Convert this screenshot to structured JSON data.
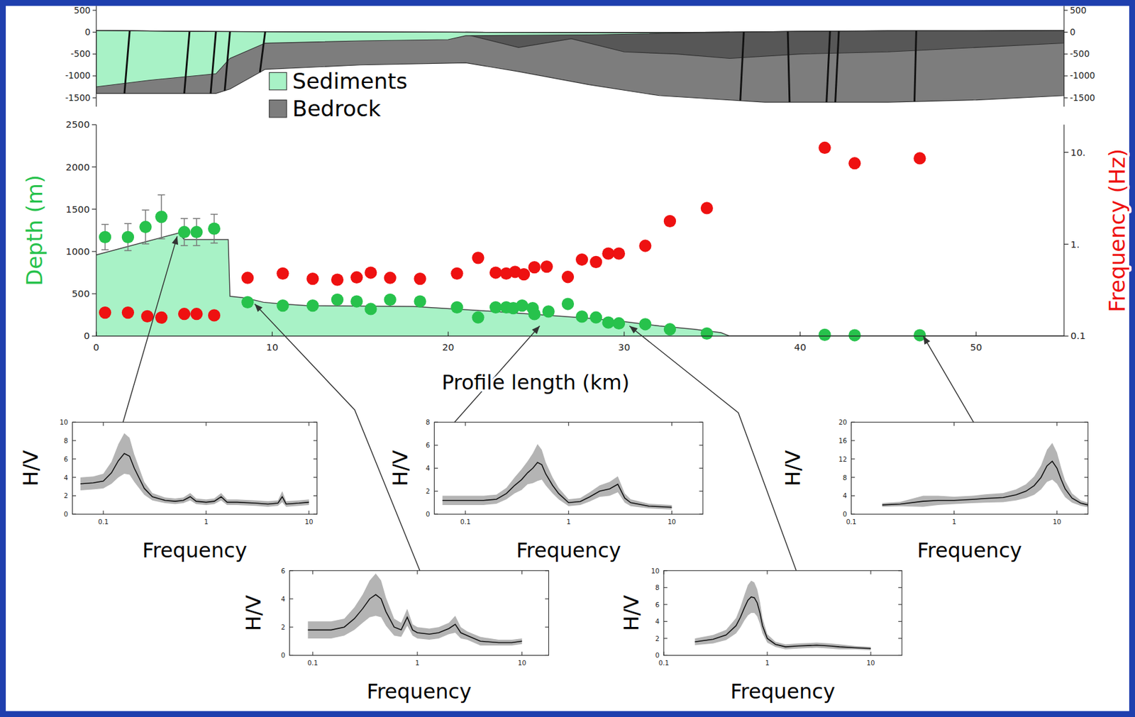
{
  "chart_data": [
    {
      "type": "cross_section",
      "xlim": [
        0,
        55
      ],
      "ylim": [
        -1700,
        600
      ],
      "yticks": [
        500,
        0,
        -500,
        -1000,
        -1500
      ],
      "tick_labels": "y",
      "surface": {
        "x": [
          0,
          5,
          10,
          20,
          30,
          36,
          40,
          45,
          50,
          55
        ],
        "values": [
          40,
          20,
          10,
          0,
          -10,
          0,
          20,
          30,
          30,
          40
        ]
      },
      "sediment_base": {
        "x": [
          0,
          3,
          6.8,
          7.6,
          9.6,
          15,
          20,
          21,
          28,
          36
        ],
        "values": [
          -1250,
          -1100,
          -950,
          -600,
          -250,
          -200,
          -170,
          -80,
          -60,
          0
        ]
      },
      "bedrock_base": {
        "x": [
          0,
          6.8,
          7.6,
          9.6,
          15,
          21,
          24,
          28,
          32,
          38,
          45,
          50,
          55
        ],
        "values": [
          -1400,
          -1400,
          -1300,
          -850,
          -750,
          -700,
          -900,
          -1200,
          -1450,
          -1600,
          -1600,
          -1550,
          -1450
        ]
      },
      "upper_unit_base": {
        "x": [
          21,
          24,
          27,
          30,
          33,
          36,
          40,
          45,
          50,
          55
        ],
        "values": [
          -50,
          -350,
          -150,
          -450,
          -500,
          -600,
          -500,
          -450,
          -350,
          -250
        ]
      },
      "faults": [
        [
          1.9,
          1.6
        ],
        [
          5.3,
          5.0
        ],
        [
          6.8,
          6.5
        ],
        [
          7.6,
          7.3
        ],
        [
          9.6,
          9.3
        ],
        [
          36.8,
          36.6
        ],
        [
          39.3,
          39.4
        ],
        [
          41.7,
          41.5
        ],
        [
          42.2,
          42.0
        ],
        [
          46.6,
          46.5
        ]
      ],
      "series": [
        {
          "name": "Sediments",
          "color": "#a8f2c6"
        },
        {
          "name": "Bedrock",
          "color": "#7d7d7d"
        }
      ],
      "legend": "bottom-left"
    },
    {
      "type": "scatter",
      "xlabel": "Profile length (km)",
      "ylabel": "Depth (m)",
      "y2label": "Frequency (Hz)",
      "xlim": [
        0,
        55
      ],
      "xticks": [
        0,
        10,
        20,
        30,
        40,
        50
      ],
      "ylim": [
        0,
        2500
      ],
      "yticks": [
        0,
        500,
        1000,
        1500,
        2000,
        2500
      ],
      "y2lim": [
        0.1,
        20
      ],
      "y2ticks": [
        {
          "value": 0.1,
          "label": "0.1"
        },
        {
          "value": 1,
          "label": "1."
        },
        {
          "value": 10,
          "label": "10."
        }
      ],
      "log": "y2",
      "series": [
        {
          "type": "area",
          "color": "#a8f2c6",
          "x": [
            0,
            4.7,
            5.0,
            7.5,
            7.6,
            8.5,
            9.5,
            10.5,
            12,
            18,
            22,
            26,
            28,
            30,
            32,
            34,
            35.5,
            36,
            55
          ],
          "values": [
            960,
            1220,
            1140,
            1140,
            470,
            450,
            400,
            380,
            360,
            350,
            300,
            240,
            210,
            170,
            120,
            80,
            40,
            0,
            0
          ]
        },
        {
          "type": "scatter",
          "color": "#27c24c",
          "x": [
            0.5,
            1.8,
            2.8,
            3.7,
            5.0,
            5.7,
            6.7,
            8.6,
            10.6,
            12.3,
            13.7,
            14.8,
            15.6,
            16.7,
            18.4,
            20.5,
            21.7,
            22.7,
            23.3,
            23.7,
            24.2,
            24.8,
            24.9,
            25.7,
            26.8,
            27.6,
            28.4,
            29.1,
            29.7,
            31.2,
            32.6,
            34.7,
            41.4,
            43.1,
            46.8
          ],
          "values": [
            1170,
            1170,
            1290,
            1410,
            1230,
            1230,
            1270,
            400,
            360,
            360,
            430,
            410,
            320,
            430,
            410,
            340,
            220,
            340,
            340,
            330,
            360,
            330,
            260,
            290,
            380,
            230,
            220,
            160,
            150,
            140,
            80,
            30,
            15,
            10,
            10
          ],
          "errors": [
            150,
            160,
            200,
            260,
            160,
            160,
            170,
            null,
            null,
            null,
            null,
            null,
            null,
            null,
            null,
            null,
            null,
            null,
            null,
            null,
            null,
            null,
            null,
            null,
            null,
            null,
            null,
            null,
            null,
            null,
            null,
            null,
            null,
            null,
            null
          ]
        },
        {
          "type": "scatter",
          "axis": "y2",
          "color": "#ee1111",
          "x": [
            0.5,
            1.8,
            2.9,
            3.7,
            5.0,
            5.7,
            6.7,
            8.6,
            10.6,
            12.3,
            13.7,
            14.8,
            15.6,
            16.7,
            18.4,
            20.5,
            21.7,
            22.7,
            23.3,
            23.8,
            24.3,
            24.9,
            25.6,
            26.8,
            27.6,
            28.4,
            29.1,
            29.7,
            31.2,
            32.6,
            34.7,
            41.4,
            43.1,
            46.8
          ],
          "values": [
            0.18,
            0.18,
            0.164,
            0.159,
            0.174,
            0.174,
            0.168,
            0.43,
            0.48,
            0.42,
            0.41,
            0.435,
            0.49,
            0.43,
            0.42,
            0.48,
            0.71,
            0.49,
            0.48,
            0.5,
            0.47,
            0.56,
            0.57,
            0.44,
            0.68,
            0.64,
            0.79,
            0.79,
            0.96,
            1.78,
            2.47,
            11.2,
            7.6,
            8.6
          ]
        }
      ]
    },
    {
      "type": "line",
      "xlabel": "Frequency",
      "ylabel": "H/V",
      "log": "x",
      "xlim": [
        0.05,
        12
      ],
      "xticks": [
        0.1,
        1,
        10
      ],
      "ylim": [
        0,
        10
      ],
      "yticks": [
        0,
        2,
        4,
        6,
        8,
        10
      ],
      "x": [
        0.06,
        0.08,
        0.1,
        0.12,
        0.14,
        0.16,
        0.18,
        0.2,
        0.25,
        0.3,
        0.4,
        0.5,
        0.6,
        0.7,
        0.8,
        1.0,
        1.2,
        1.4,
        1.6,
        2,
        3,
        4,
        5,
        5.5,
        6,
        8,
        10
      ],
      "values": [
        3.3,
        3.4,
        3.6,
        4.5,
        5.8,
        6.6,
        6.3,
        5.0,
        2.8,
        1.9,
        1.5,
        1.4,
        1.5,
        1.9,
        1.4,
        1.3,
        1.4,
        1.9,
        1.3,
        1.3,
        1.2,
        1.1,
        1.2,
        1.9,
        1.1,
        1.2,
        1.3
      ],
      "std": [
        0.7,
        0.7,
        0.8,
        1.2,
        1.8,
        2.2,
        2.0,
        1.5,
        0.7,
        0.4,
        0.3,
        0.3,
        0.3,
        0.4,
        0.3,
        0.3,
        0.3,
        0.4,
        0.3,
        0.3,
        0.3,
        0.3,
        0.3,
        0.6,
        0.3,
        0.3,
        0.3
      ],
      "station_km": 4.6,
      "station_depth": 1180
    },
    {
      "type": "line",
      "xlabel": "Frequency",
      "ylabel": "H/V",
      "log": "x",
      "xlim": [
        0.06,
        18
      ],
      "xticks": [
        0.1,
        1,
        10
      ],
      "ylim": [
        0,
        6
      ],
      "yticks": [
        0,
        2,
        4,
        6
      ],
      "x": [
        0.09,
        0.15,
        0.2,
        0.25,
        0.3,
        0.35,
        0.4,
        0.45,
        0.5,
        0.6,
        0.7,
        0.8,
        0.9,
        1.0,
        1.3,
        1.6,
        2.0,
        2.3,
        2.6,
        3,
        4,
        6,
        8,
        10
      ],
      "values": [
        1.8,
        1.8,
        2.0,
        2.6,
        3.3,
        4.0,
        4.3,
        4.0,
        3.1,
        2.0,
        1.8,
        2.7,
        1.8,
        1.6,
        1.5,
        1.6,
        1.9,
        2.2,
        1.6,
        1.4,
        1.0,
        0.9,
        0.9,
        1.0
      ],
      "std": [
        0.6,
        0.6,
        0.6,
        0.8,
        1.0,
        1.3,
        1.5,
        1.3,
        1.0,
        0.6,
        0.5,
        0.6,
        0.4,
        0.4,
        0.4,
        0.4,
        0.4,
        0.6,
        0.4,
        0.3,
        0.3,
        0.2,
        0.2,
        0.2
      ],
      "station_km": 9.0,
      "station_depth": 380
    },
    {
      "type": "line",
      "xlabel": "Frequency",
      "ylabel": "H/V",
      "log": "x",
      "xlim": [
        0.05,
        20
      ],
      "xticks": [
        0.1,
        1,
        10
      ],
      "ylim": [
        0,
        8
      ],
      "yticks": [
        0,
        2,
        4,
        6,
        8
      ],
      "x": [
        0.06,
        0.1,
        0.15,
        0.2,
        0.25,
        0.3,
        0.35,
        0.4,
        0.45,
        0.5,
        0.55,
        0.6,
        0.7,
        0.8,
        1.0,
        1.3,
        1.6,
        2.0,
        2.5,
        3.0,
        3.5,
        4,
        6,
        10
      ],
      "values": [
        1.2,
        1.2,
        1.2,
        1.3,
        1.8,
        2.5,
        3.0,
        3.6,
        4.0,
        4.5,
        4.3,
        3.5,
        2.5,
        1.8,
        1.0,
        1.1,
        1.5,
        2.0,
        2.2,
        2.6,
        1.4,
        1.0,
        0.7,
        0.6
      ],
      "std": [
        0.4,
        0.4,
        0.4,
        0.4,
        0.5,
        0.7,
        0.9,
        1.0,
        1.3,
        1.6,
        1.3,
        1.0,
        0.7,
        0.5,
        0.3,
        0.3,
        0.4,
        0.5,
        0.6,
        0.7,
        0.4,
        0.3,
        0.2,
        0.2
      ],
      "station_km": 25.2,
      "station_depth": 120
    },
    {
      "type": "line",
      "xlabel": "Frequency",
      "ylabel": "H/V",
      "log": "x",
      "xlim": [
        0.1,
        20
      ],
      "xticks": [
        0.1,
        1,
        10
      ],
      "ylim": [
        0,
        10
      ],
      "yticks": [
        0,
        2,
        4,
        6,
        8,
        10
      ],
      "x": [
        0.2,
        0.3,
        0.4,
        0.5,
        0.55,
        0.6,
        0.65,
        0.7,
        0.75,
        0.8,
        0.85,
        0.9,
        1.0,
        1.2,
        1.5,
        2,
        3,
        4,
        5,
        7,
        10
      ],
      "values": [
        1.6,
        1.9,
        2.4,
        3.5,
        4.5,
        5.6,
        6.5,
        6.9,
        6.8,
        6.2,
        5.0,
        3.5,
        2.0,
        1.3,
        1.0,
        1.1,
        1.2,
        1.1,
        1.0,
        0.9,
        0.8
      ],
      "std": [
        0.4,
        0.5,
        0.6,
        0.9,
        1.2,
        1.5,
        1.8,
        1.9,
        1.8,
        1.6,
        1.3,
        0.9,
        0.5,
        0.3,
        0.3,
        0.3,
        0.3,
        0.3,
        0.3,
        0.2,
        0.2
      ],
      "station_km": 30.3,
      "station_depth": 120
    },
    {
      "type": "line",
      "xlabel": "Frequency",
      "ylabel": "H/V",
      "log": "x",
      "xlim": [
        0.1,
        20
      ],
      "xticks": [
        0.1,
        1,
        10
      ],
      "ylim": [
        0,
        20
      ],
      "yticks": [
        0,
        4,
        8,
        12,
        16,
        20
      ],
      "x": [
        0.2,
        0.3,
        0.5,
        0.7,
        1.0,
        1.5,
        2,
        3,
        4,
        5,
        6,
        7,
        8,
        9,
        10,
        11,
        12,
        14,
        17,
        20
      ],
      "values": [
        2.0,
        2.2,
        2.8,
        3.0,
        3.0,
        3.2,
        3.4,
        3.6,
        4.2,
        5.0,
        6.2,
        8.0,
        10.5,
        11.5,
        10,
        7.5,
        5.5,
        3.5,
        2.4,
        2.0
      ],
      "std": [
        0.4,
        0.5,
        1.2,
        1.0,
        0.8,
        0.8,
        0.9,
        1.0,
        1.2,
        1.5,
        2.0,
        2.6,
        3.5,
        4.0,
        3.4,
        2.5,
        1.8,
        1.0,
        0.6,
        0.5
      ],
      "station_km": 47.0,
      "station_depth": 0
    }
  ]
}
